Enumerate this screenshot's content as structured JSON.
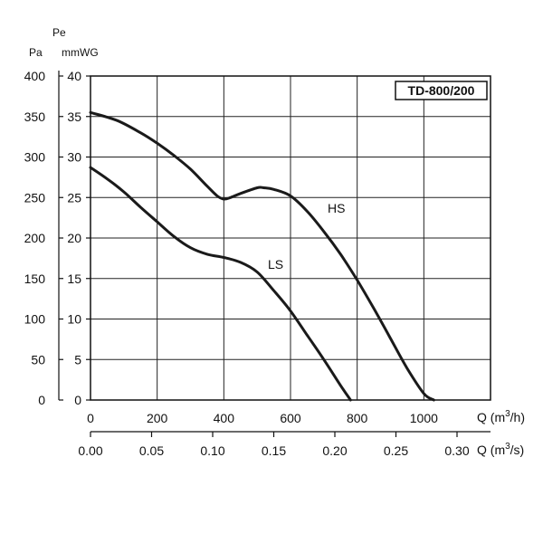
{
  "chart_data": {
    "type": "line",
    "model_label": "TD-800/200",
    "pa_unit_label": "Pa",
    "pe_unit_label": "Pe",
    "mmwg_unit_label": "mmWG",
    "xlabel_m3h": "Q (m",
    "xlabel_m3h_sup": "3",
    "xlabel_m3h_tail": "/h)",
    "xlabel_m3s": "Q (m",
    "xlabel_m3s_sup": "3",
    "xlabel_m3s_tail": "/s)",
    "xlim": [
      0,
      1200
    ],
    "ylim_pa": [
      0,
      400
    ],
    "ylim_mmwg": [
      0,
      40
    ],
    "x_ticks_m3h": [
      "0",
      "200",
      "400",
      "600",
      "800",
      "1000"
    ],
    "x_ticks_m3h_values": [
      0,
      200,
      400,
      600,
      800,
      1000
    ],
    "x_ticks_m3s": [
      "0.00",
      "0.05",
      "0.10",
      "0.15",
      "0.20",
      "0.25",
      "0.30"
    ],
    "x_ticks_m3s_values": [
      0,
      0.05,
      0.1,
      0.15,
      0.2,
      0.25,
      0.3
    ],
    "y_ticks_pa": [
      "0",
      "50",
      "100",
      "150",
      "200",
      "250",
      "300",
      "350",
      "400"
    ],
    "y_ticks_pa_values": [
      0,
      50,
      100,
      150,
      200,
      250,
      300,
      350,
      400
    ],
    "y_ticks_mmwg": [
      "0",
      "5",
      "10",
      "15",
      "20",
      "25",
      "30",
      "35",
      "40"
    ],
    "y_ticks_mmwg_values": [
      0,
      5,
      10,
      15,
      20,
      25,
      30,
      35,
      40
    ],
    "grid": true,
    "series": [
      {
        "name": "HS",
        "x": [
          0,
          80,
          150,
          200,
          250,
          300,
          350,
          380,
          400,
          420,
          450,
          500,
          520,
          550,
          600,
          650,
          700,
          750,
          800,
          850,
          900,
          950,
          1000,
          1030
        ],
        "y": [
          355,
          345,
          330,
          317,
          302,
          285,
          264,
          252,
          248,
          250,
          255,
          262,
          262,
          260,
          252,
          233,
          208,
          180,
          148,
          113,
          76,
          39,
          8,
          0
        ]
      },
      {
        "name": "LS",
        "x": [
          0,
          50,
          100,
          150,
          200,
          250,
          300,
          350,
          400,
          450,
          500,
          550,
          600,
          650,
          700,
          750,
          780
        ],
        "y": [
          287,
          273,
          257,
          238,
          220,
          202,
          188,
          180,
          176,
          170,
          158,
          135,
          110,
          80,
          50,
          18,
          0
        ]
      }
    ]
  }
}
